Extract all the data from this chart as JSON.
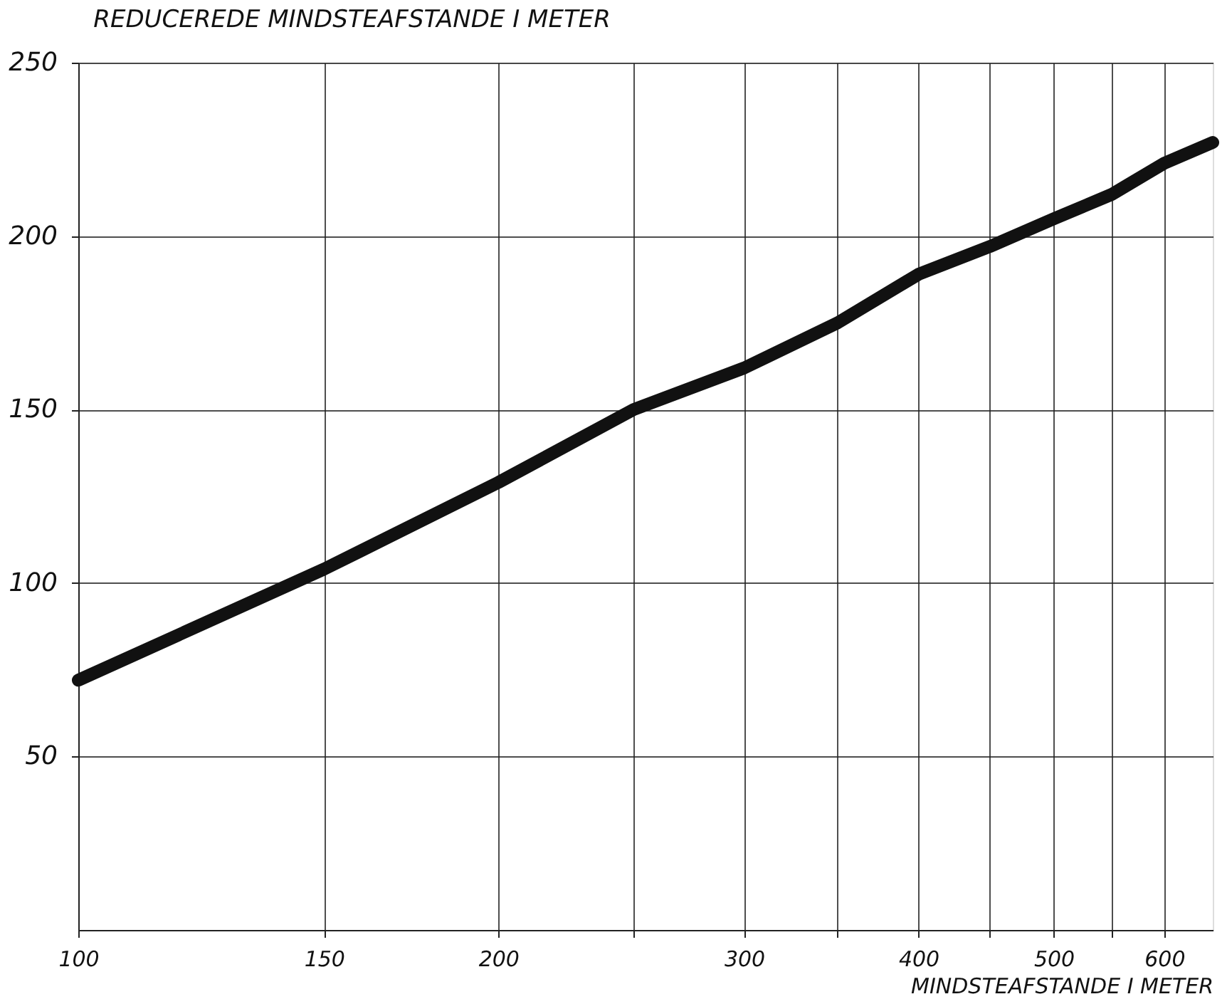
{
  "chart_data": {
    "type": "line",
    "title": "REDUCEREDE MINDSTEAFSTANDE I METER",
    "xlabel": "MINDSTEAFSTANDE I METER",
    "x": [
      100,
      150,
      200,
      250,
      300,
      350,
      400,
      450,
      500,
      550,
      600,
      650
    ],
    "series": [
      {
        "color": "#111111",
        "values": [
          72,
          104,
          129,
          150,
          162,
          175,
          189,
          197,
          205,
          212,
          221,
          227
        ]
      }
    ],
    "log": "x",
    "xlim": [
      100,
      650
    ],
    "ylim": [
      0,
      250
    ],
    "xticks": [
      100,
      150,
      200,
      {
        "value": 250,
        "label": null
      },
      300,
      {
        "value": 350,
        "label": null
      },
      400,
      {
        "value": 450,
        "label": null
      },
      500,
      {
        "value": 550,
        "label": null
      },
      600
    ],
    "yticks": [
      50,
      100,
      150,
      200,
      250
    ],
    "grid": true,
    "marker": "none",
    "line_style": "solid"
  }
}
